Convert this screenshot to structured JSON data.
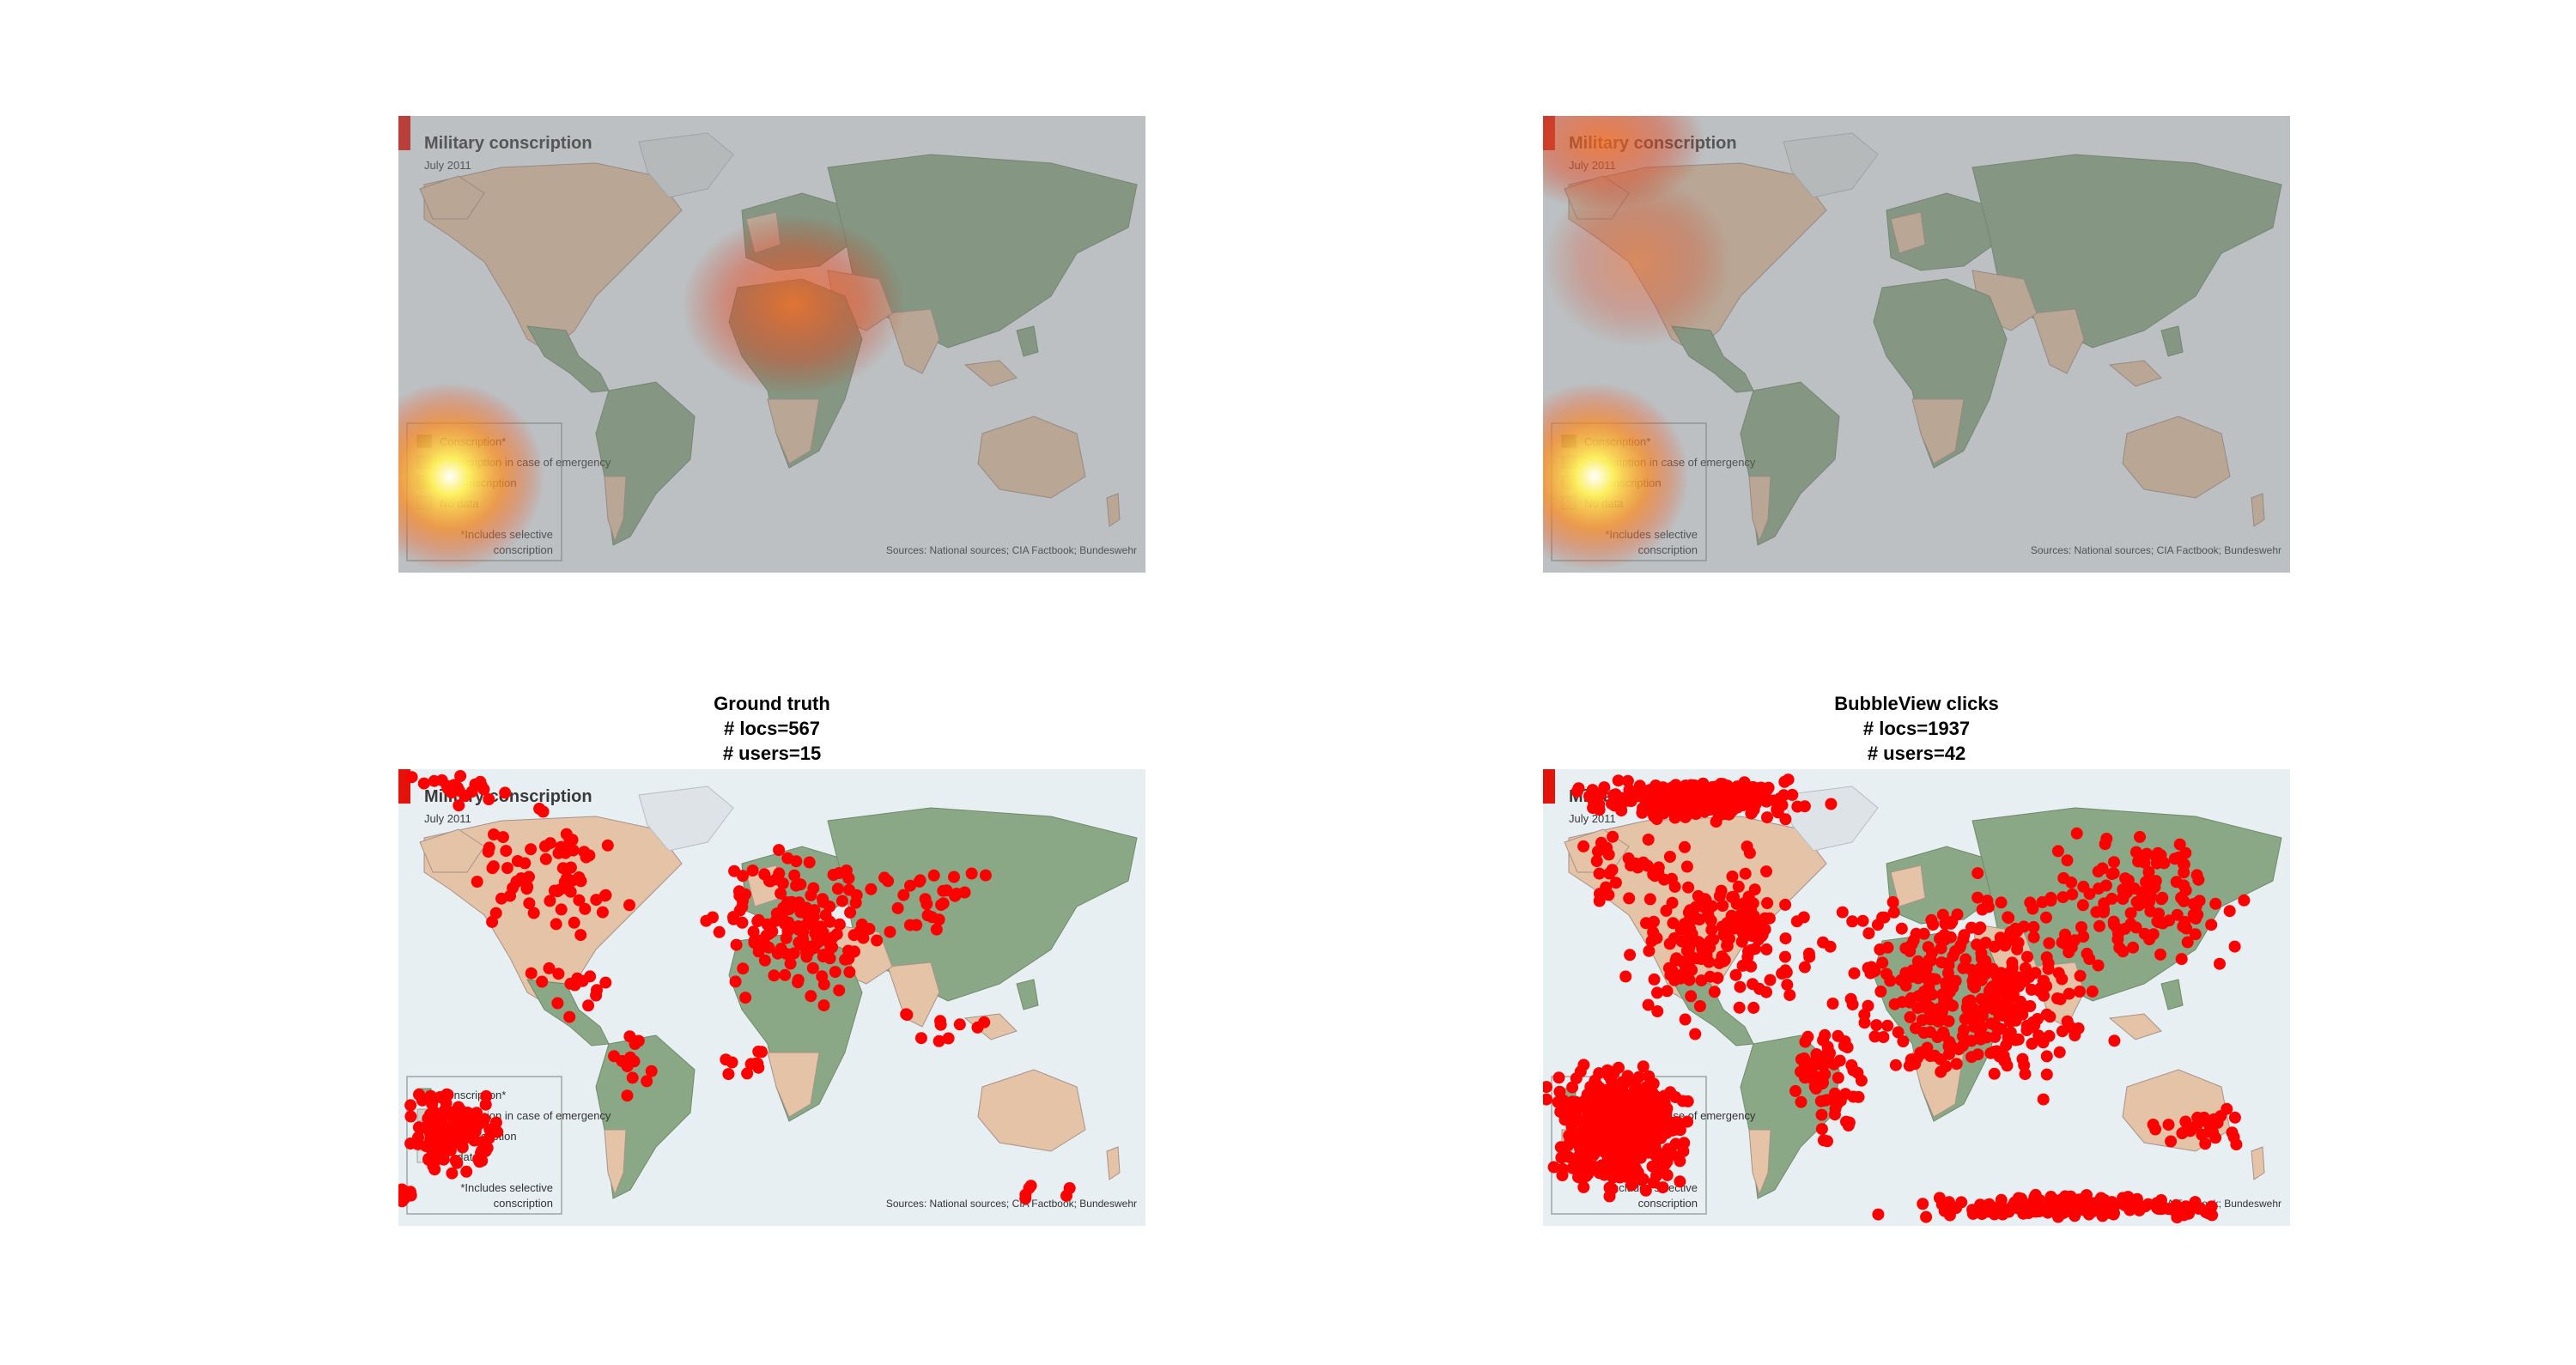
{
  "map": {
    "title": "Military conscription",
    "date": "July 2011",
    "legend": [
      "Conscription*",
      "Conscription in case of emergency",
      "No conscription",
      "No data"
    ],
    "legend_footnote_1": "*Includes selective",
    "legend_footnote_2": "conscription",
    "sources": "Sources: National sources; CIA Factbook; Bundeswehr",
    "colors": {
      "ocean": "#e8eff3",
      "conscription": "#8aa886",
      "no_conscription": "#e4c3a6",
      "emergency": "#c9cfc4",
      "no_data": "#dde3e6",
      "brand": "#e3120b",
      "marker": "#ff0000"
    }
  },
  "panels": {
    "heatmap_1": {
      "view": "saliency heatmap"
    },
    "heatmap_2": {
      "view": "saliency heatmap"
    },
    "ground_truth": {
      "line1": "Ground truth",
      "line2": "# locs=567",
      "line3": "# users=15"
    },
    "bubbleview": {
      "line1": "BubbleView clicks",
      "line2": "# locs=1937",
      "line3": "# users=42"
    }
  }
}
